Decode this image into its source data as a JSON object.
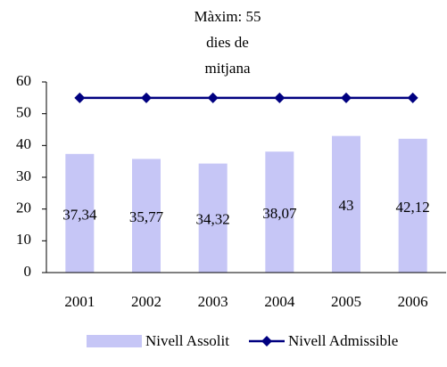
{
  "chart_data": {
    "type": "bar",
    "annotation": [
      "Màxim: 55",
      "dies de",
      "mitjana"
    ],
    "categories": [
      "2001",
      "2002",
      "2003",
      "2004",
      "2005",
      "2006"
    ],
    "series": [
      {
        "name": "Nivell Assolit",
        "type": "bar",
        "color": "#c6c6f6",
        "values": [
          37.34,
          35.77,
          34.32,
          38.07,
          43,
          42.12
        ],
        "value_labels": [
          "37,34",
          "35,77",
          "34,32",
          "38,07",
          "43",
          "42,12"
        ]
      },
      {
        "name": "Nivell Admissible",
        "type": "line",
        "color": "#000080",
        "values": [
          55,
          55,
          55,
          55,
          55,
          55
        ]
      }
    ],
    "ylim": [
      0,
      60
    ],
    "yticks": [
      0,
      10,
      20,
      30,
      40,
      50,
      60
    ],
    "grid": false,
    "legend": "bottom"
  }
}
